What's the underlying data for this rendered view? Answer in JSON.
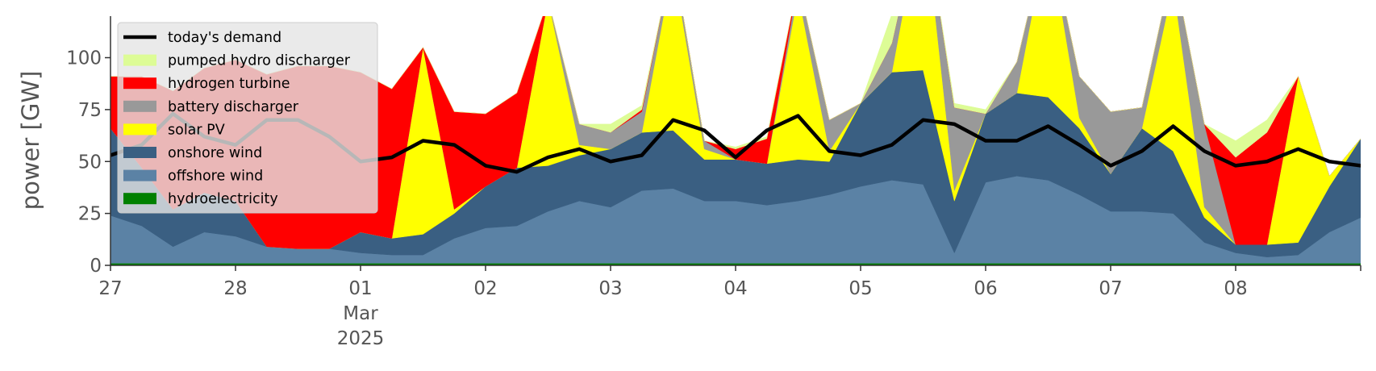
{
  "chart_data": {
    "type": "area",
    "ylabel": "power [GW]",
    "ylim": [
      0,
      120
    ],
    "yticks": [
      0,
      25,
      50,
      75,
      100
    ],
    "xlim": [
      "2025-02-27T00:00",
      "2025-03-09T00:00"
    ],
    "xticks": [
      {
        "t": "2025-02-27T00:00",
        "lines": [
          "27"
        ]
      },
      {
        "t": "2025-02-28T00:00",
        "lines": [
          "28"
        ]
      },
      {
        "t": "2025-03-01T00:00",
        "lines": [
          "01",
          "Mar",
          "2025"
        ]
      },
      {
        "t": "2025-03-02T00:00",
        "lines": [
          "02"
        ]
      },
      {
        "t": "2025-03-03T00:00",
        "lines": [
          "03"
        ]
      },
      {
        "t": "2025-03-04T00:00",
        "lines": [
          "04"
        ]
      },
      {
        "t": "2025-03-05T00:00",
        "lines": [
          "05"
        ]
      },
      {
        "t": "2025-03-06T00:00",
        "lines": [
          "06"
        ]
      },
      {
        "t": "2025-03-07T00:00",
        "lines": [
          "07"
        ]
      },
      {
        "t": "2025-03-08T00:00",
        "lines": [
          "08"
        ]
      }
    ],
    "legend_position": "top-left",
    "x": [
      "2025-02-27T00:00",
      "2025-02-27T06:00",
      "2025-02-27T12:00",
      "2025-02-27T18:00",
      "2025-02-28T00:00",
      "2025-02-28T06:00",
      "2025-02-28T12:00",
      "2025-02-28T18:00",
      "2025-03-01T00:00",
      "2025-03-01T06:00",
      "2025-03-01T12:00",
      "2025-03-01T18:00",
      "2025-03-02T00:00",
      "2025-03-02T06:00",
      "2025-03-02T12:00",
      "2025-03-02T18:00",
      "2025-03-03T00:00",
      "2025-03-03T06:00",
      "2025-03-03T12:00",
      "2025-03-03T18:00",
      "2025-03-04T00:00",
      "2025-03-04T06:00",
      "2025-03-04T12:00",
      "2025-03-04T18:00",
      "2025-03-05T00:00",
      "2025-03-05T06:00",
      "2025-03-05T12:00",
      "2025-03-05T18:00",
      "2025-03-06T00:00",
      "2025-03-06T06:00",
      "2025-03-06T12:00",
      "2025-03-06T18:00",
      "2025-03-07T00:00",
      "2025-03-07T06:00",
      "2025-03-07T12:00",
      "2025-03-07T18:00",
      "2025-03-08T00:00",
      "2025-03-08T06:00",
      "2025-03-08T12:00",
      "2025-03-08T18:00",
      "2025-03-09T00:00"
    ],
    "series": [
      {
        "name": "hydroelectricity",
        "color": "#008000",
        "values": [
          1,
          1,
          1,
          1,
          1,
          1,
          1,
          1,
          1,
          1,
          1,
          1,
          1,
          1,
          1,
          1,
          1,
          1,
          1,
          1,
          1,
          1,
          1,
          1,
          1,
          1,
          1,
          1,
          1,
          1,
          1,
          1,
          1,
          1,
          1,
          1,
          1,
          1,
          1,
          1,
          1
        ]
      },
      {
        "name": "offshore wind",
        "color": "#5b82a5",
        "values": [
          23,
          18,
          8,
          15,
          13,
          8,
          7,
          7,
          5,
          4,
          4,
          12,
          17,
          18,
          25,
          30,
          27,
          35,
          36,
          30,
          30,
          28,
          30,
          33,
          37,
          40,
          38,
          5,
          39,
          42,
          40,
          33,
          25,
          25,
          24,
          10,
          5,
          3,
          4,
          15,
          22
        ]
      },
      {
        "name": "onshore wind",
        "color": "#3a5f82",
        "values": [
          42,
          28,
          18,
          19,
          17,
          0,
          0,
          0,
          10,
          8,
          10,
          12,
          20,
          28,
          22,
          22,
          28,
          28,
          28,
          20,
          20,
          20,
          20,
          16,
          40,
          52,
          55,
          25,
          33,
          40,
          40,
          32,
          18,
          40,
          30,
          12,
          4,
          6,
          6,
          22,
          38
        ]
      },
      {
        "name": "solar PV",
        "color": "#ffff00",
        "values": [
          0,
          0,
          0,
          0,
          0,
          0,
          0,
          0,
          0,
          0,
          90,
          2,
          0,
          0,
          80,
          5,
          0,
          0,
          80,
          5,
          0,
          0,
          80,
          5,
          0,
          0,
          80,
          5,
          0,
          0,
          80,
          5,
          0,
          0,
          80,
          5,
          0,
          0,
          80,
          5,
          0
        ]
      },
      {
        "name": "battery discharger",
        "color": "#999999",
        "values": [
          0,
          0,
          0,
          0,
          0,
          0,
          0,
          0,
          0,
          0,
          0,
          0,
          0,
          0,
          0,
          10,
          8,
          10,
          4,
          4,
          0,
          0,
          6,
          15,
          0,
          14,
          0,
          40,
          0,
          15,
          0,
          20,
          30,
          10,
          10,
          40,
          0,
          0,
          0,
          0,
          0
        ]
      },
      {
        "name": "hydrogen turbine",
        "color": "#ff0000",
        "values": [
          25,
          44,
          57,
          60,
          68,
          83,
          88,
          88,
          77,
          72,
          0,
          47,
          35,
          36,
          0,
          0,
          0,
          1,
          0,
          0,
          5,
          12,
          0,
          0,
          0,
          0,
          0,
          0,
          0,
          0,
          0,
          0,
          0,
          0,
          0,
          0,
          42,
          54,
          0,
          0,
          0
        ]
      },
      {
        "name": "pumped hydro discharger",
        "color": "#ddfc96",
        "values": [
          0,
          0,
          0,
          0,
          0,
          0,
          0,
          0,
          0,
          0,
          0,
          0,
          0,
          0,
          0,
          0,
          4,
          2,
          0,
          0,
          1,
          1,
          0,
          0,
          0,
          14,
          0,
          2,
          2,
          0,
          0,
          0,
          0,
          0,
          0,
          0,
          8,
          6,
          0,
          0,
          0
        ]
      }
    ],
    "demand": {
      "name": "today's demand",
      "color": "#000000",
      "values": [
        53,
        58,
        73,
        62,
        58,
        70,
        70,
        62,
        50,
        52,
        60,
        58,
        48,
        45,
        52,
        56,
        50,
        53,
        70,
        65,
        52,
        65,
        72,
        55,
        53,
        58,
        70,
        68,
        60,
        60,
        67,
        58,
        48,
        55,
        67,
        55,
        48,
        50,
        56,
        50,
        48
      ]
    },
    "legend": [
      "today's demand",
      "pumped hydro discharger",
      "hydrogen turbine",
      "battery discharger",
      "solar PV",
      "onshore wind",
      "offshore wind",
      "hydroelectricity"
    ]
  }
}
